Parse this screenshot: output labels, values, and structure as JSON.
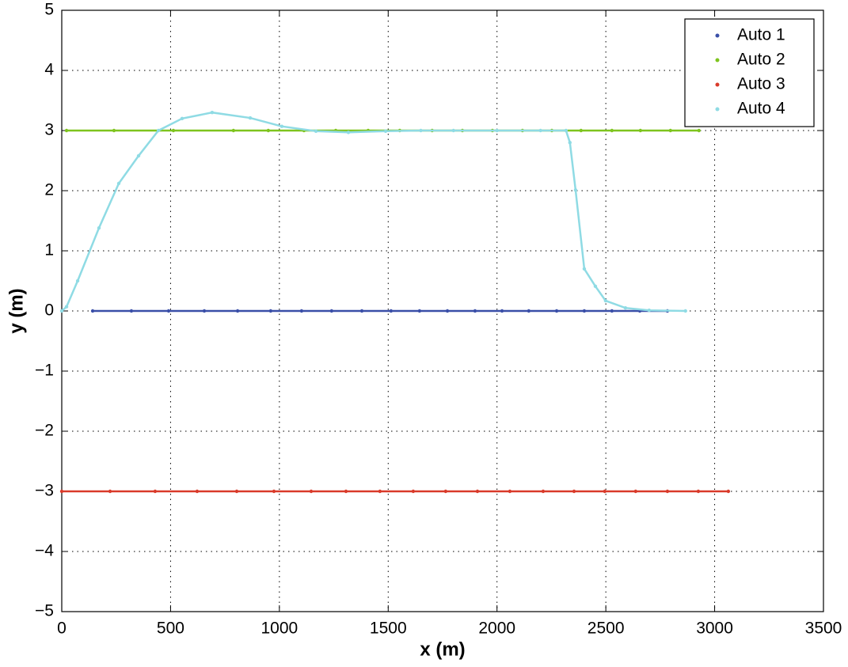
{
  "chart_data": {
    "type": "line",
    "xlabel": "x (m)",
    "ylabel": "y (m)",
    "xlim": [
      0,
      3500
    ],
    "ylim": [
      -5,
      5
    ],
    "xticks": [
      0,
      500,
      1000,
      1500,
      2000,
      2500,
      3000,
      3500
    ],
    "yticks": [
      {
        "value": -5,
        "label": "−5"
      },
      {
        "value": -4,
        "label": "−4"
      },
      {
        "value": -3,
        "label": "−3"
      },
      {
        "value": -2,
        "label": "−2"
      },
      {
        "value": -1,
        "label": "−1"
      },
      0,
      1,
      2,
      3,
      4,
      5
    ],
    "grid": true,
    "legend": "northeast",
    "series": [
      {
        "name": "Auto 1",
        "color": "#3a4fa8",
        "x": [
          142,
          320,
          491,
          655,
          808,
          960,
          1102,
          1240,
          1379,
          1513,
          1644,
          1772,
          1899,
          2023,
          2146,
          2274,
          2401,
          2528,
          2656,
          2783
        ],
        "values": [
          0,
          0,
          0,
          0,
          0,
          0,
          0,
          0,
          0,
          0,
          0,
          0,
          0,
          0,
          0,
          0,
          0,
          0,
          0,
          0
        ]
      },
      {
        "name": "Auto 2",
        "color": "#7ec41e",
        "x": [
          22,
          240,
          513,
          789,
          949,
          1113,
          1259,
          1408,
          1553,
          1702,
          1841,
          1979,
          2117,
          2252,
          2386,
          2528,
          2659,
          2797,
          2928
        ],
        "values": [
          3,
          3,
          3,
          3,
          3,
          3,
          3,
          3,
          3,
          3,
          3,
          3,
          3,
          3,
          3,
          3,
          3,
          3,
          3
        ]
      },
      {
        "name": "Auto 3",
        "color": "#d93a2a",
        "x": [
          0,
          222,
          429,
          622,
          804,
          975,
          1146,
          1306,
          1462,
          1615,
          1764,
          1910,
          2059,
          2212,
          2354,
          2495,
          2637,
          2783,
          2925,
          3063
        ],
        "values": [
          -3,
          -3,
          -3,
          -3,
          -3,
          -3,
          -3,
          -3,
          -3,
          -3,
          -3,
          -3,
          -3,
          -3,
          -3,
          -3,
          -3,
          -3,
          -3,
          -3
        ]
      },
      {
        "name": "Auto 4",
        "color": "#8fdbe4",
        "x": [
          0,
          22,
          73,
          171,
          262,
          353,
          444,
          553,
          691,
          866,
          1011,
          1168,
          1317,
          1488,
          1650,
          1800,
          2000,
          2200,
          2317,
          2335,
          2361,
          2401,
          2452,
          2499,
          2590,
          2699,
          2866
        ],
        "values": [
          0,
          0.07,
          0.5,
          1.38,
          2.12,
          2.58,
          3.0,
          3.2,
          3.3,
          3.21,
          3.07,
          2.99,
          2.97,
          2.99,
          3.0,
          3.0,
          3.0,
          3.0,
          3.0,
          2.8,
          2.01,
          0.7,
          0.41,
          0.17,
          0.05,
          0.01,
          0
        ]
      }
    ]
  }
}
